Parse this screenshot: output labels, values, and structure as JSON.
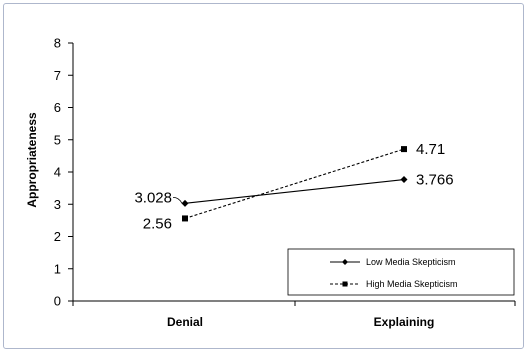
{
  "chart_data": {
    "type": "line",
    "categories": [
      "Denial",
      "Explaining"
    ],
    "title": "",
    "xlabel": "",
    "ylabel": "Appropriateness",
    "ylim": [
      0,
      8
    ],
    "yticks": [
      "0",
      "1",
      "2",
      "3",
      "4",
      "5",
      "6",
      "7",
      "8"
    ],
    "grid": false,
    "legend_position": "bottom-right",
    "series": [
      {
        "name": "Low Media Skepticism",
        "values": [
          3.028,
          3.766
        ],
        "labels": [
          "3.028",
          "3.766"
        ],
        "line_style": "solid",
        "marker": "diamond",
        "color": "#000000"
      },
      {
        "name": "High Media Skepticism",
        "values": [
          2.56,
          4.71
        ],
        "labels": [
          "2.56",
          "4.71"
        ],
        "line_style": "dashed",
        "marker": "square",
        "color": "#000000"
      }
    ]
  }
}
